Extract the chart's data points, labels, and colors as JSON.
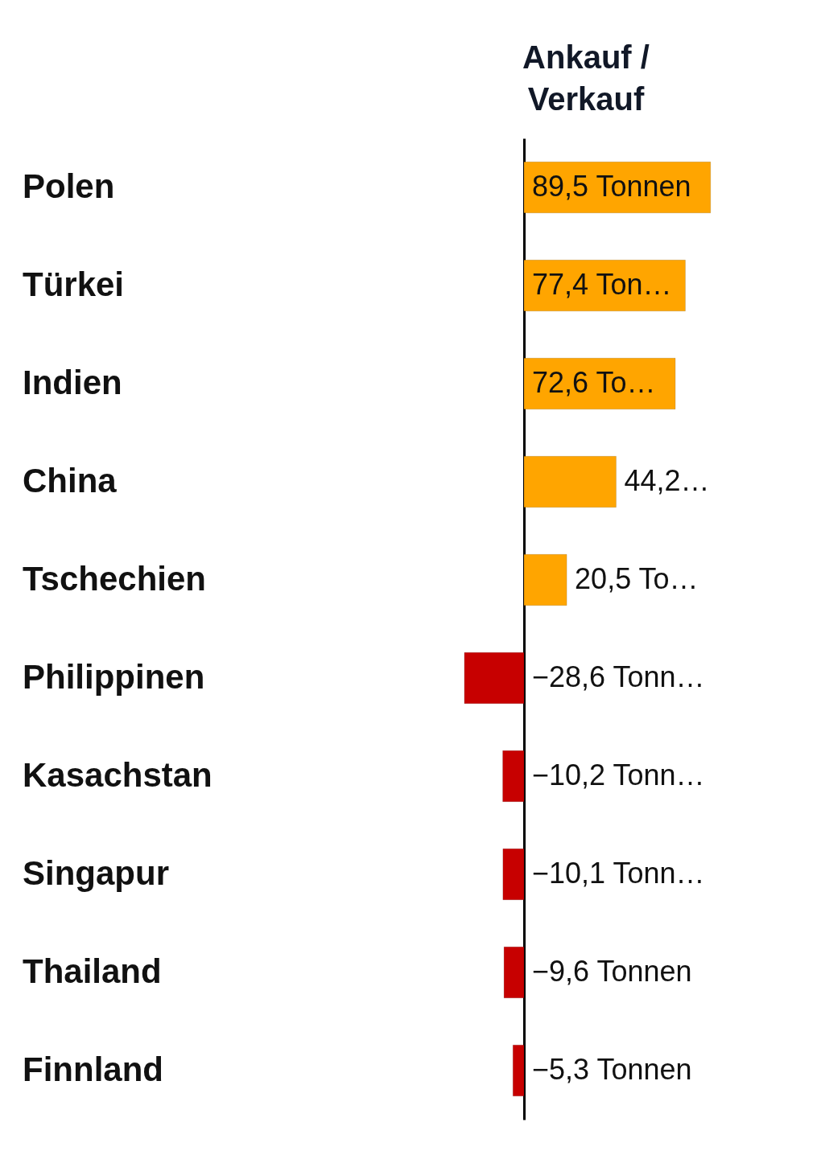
{
  "chart_data": {
    "type": "bar",
    "orientation": "horizontal",
    "title": "Ankauf / Verkauf",
    "categories": [
      "Polen",
      "Türkei",
      "Indien",
      "China",
      "Tschechien",
      "Philippinen",
      "Kasachstan",
      "Singapur",
      "Thailand",
      "Finnland"
    ],
    "values": [
      89.5,
      77.4,
      72.6,
      44.2,
      20.5,
      -28.6,
      -10.2,
      -10.1,
      -9.6,
      -5.3
    ],
    "colors": [
      "#ffa500",
      "#ffa500",
      "#ffa500",
      "#ffa500",
      "#ffa500",
      "#c70000",
      "#c70000",
      "#c70000",
      "#c70000",
      "#c70000"
    ],
    "value_labels": [
      "89,5 Tonnen",
      "77,4 Ton…",
      "72,6 To…",
      "44,2…",
      "20,5 To…",
      "−28,6 Tonn…",
      "−10,2 Tonn…",
      "−10,1 Tonn…",
      "−9,6 Tonnen",
      "−5,3 Tonnen"
    ]
  }
}
